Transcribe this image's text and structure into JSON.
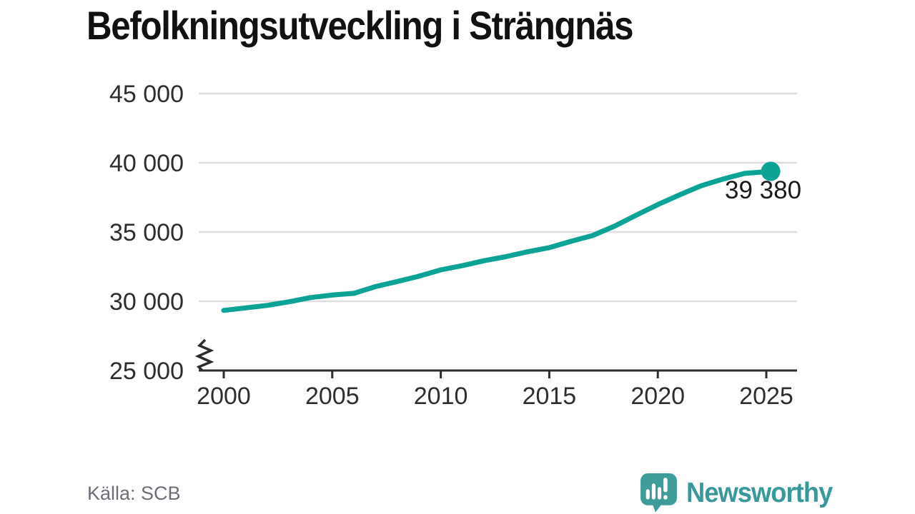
{
  "title": "Befolkningsutveckling i Strängnäs",
  "source": "Källa: SCB",
  "branding": {
    "name": "Newsworthy",
    "logo_icon": "speech-bubble-bar-chart-exclamation-icon"
  },
  "colors": {
    "line": "#0da296",
    "grid": "#dedede",
    "axis": "#2d2d2d",
    "axis_text": "#2e2e2e",
    "title_text": "#111111",
    "source_text": "#6e6e79",
    "brand": "#39989a",
    "label_text": "#1a1a1a",
    "logo_bubble": "#3f9d99"
  },
  "chart_data": {
    "type": "line",
    "title": "Befolkningsutveckling i Strängnäs",
    "xlabel": "",
    "ylabel": "",
    "x": [
      2000,
      2001,
      2002,
      2003,
      2004,
      2005,
      2006,
      2007,
      2008,
      2009,
      2010,
      2011,
      2012,
      2013,
      2014,
      2015,
      2016,
      2017,
      2018,
      2019,
      2020,
      2021,
      2022,
      2023,
      2024,
      2025.2
    ],
    "y": [
      29340,
      29520,
      29700,
      29960,
      30270,
      30450,
      30570,
      31060,
      31430,
      31810,
      32270,
      32570,
      32930,
      33220,
      33570,
      33870,
      34330,
      34750,
      35420,
      36210,
      36980,
      37680,
      38340,
      38820,
      39230,
      39380
    ],
    "end_value": 39380,
    "end_label": "39 380",
    "xticks": [
      2000,
      2005,
      2010,
      2015,
      2020,
      2025
    ],
    "xtick_labels": [
      "2000",
      "2005",
      "2010",
      "2015",
      "2020",
      "2025"
    ],
    "yticks": [
      25000,
      30000,
      35000,
      40000,
      45000
    ],
    "ytick_labels": [
      "25 000",
      "30 000",
      "35 000",
      "40 000",
      "45 000"
    ],
    "ylim": [
      25000,
      45000
    ],
    "xlim": [
      2000,
      2026.5
    ],
    "axis_break": true,
    "grid": "horizontal",
    "legend": "none",
    "line_color": "#0da296"
  }
}
